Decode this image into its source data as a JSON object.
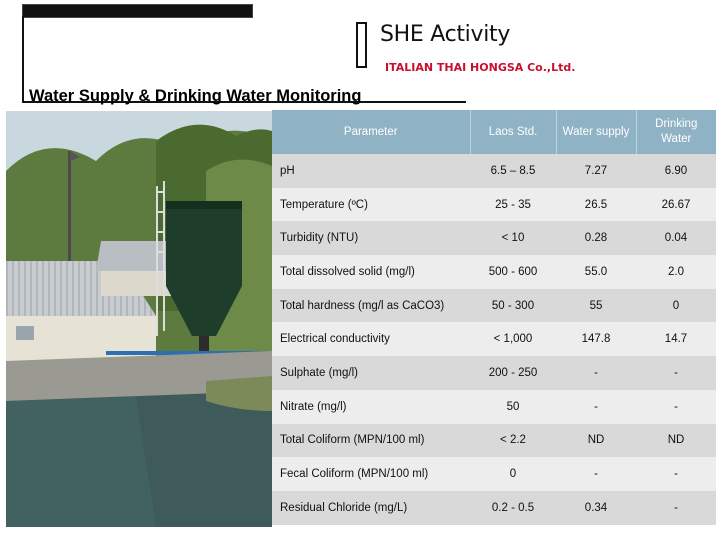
{
  "header": {
    "title": "SHE Activity",
    "company": "ITALIAN THAI HONGSA Co.,Ltd."
  },
  "page_title": "Water Supply & Drinking Water Monitoring",
  "colors": {
    "table_header": "#8fb3c5",
    "row_dark": "#d9d9d9",
    "row_light": "#ededed",
    "company_text": "#c8102e"
  },
  "table": {
    "headers": [
      "Parameter",
      "Laos Std.",
      "Water supply",
      "Drinking Water"
    ],
    "rows": [
      {
        "parameter": "pH",
        "laos_std": "6.5 – 8.5",
        "water_supply": "7.27",
        "drinking_water": "6.90"
      },
      {
        "parameter": "Temperature (ºC)",
        "laos_std": "25 - 35",
        "water_supply": "26.5",
        "drinking_water": "26.67"
      },
      {
        "parameter": "Turbidity (NTU)",
        "laos_std": "< 10",
        "water_supply": "0.28",
        "drinking_water": "0.04"
      },
      {
        "parameter": "Total dissolved solid (mg/l)",
        "laos_std": "500 - 600",
        "water_supply": "55.0",
        "drinking_water": "2.0"
      },
      {
        "parameter": "Total hardness (mg/l as CaCO3)",
        "laos_std": "50 - 300",
        "water_supply": "55",
        "drinking_water": "0"
      },
      {
        "parameter": "Electrical conductivity",
        "laos_std": "< 1,000",
        "water_supply": "147.8",
        "drinking_water": "14.7"
      },
      {
        "parameter": "Sulphate (mg/l)",
        "laos_std": "200 - 250",
        "water_supply": "-",
        "drinking_water": "-"
      },
      {
        "parameter": "Nitrate (mg/l)",
        "laos_std": "50",
        "water_supply": "-",
        "drinking_water": "-"
      },
      {
        "parameter": "Total Coliform (MPN/100 ml)",
        "laos_std": "< 2.2",
        "water_supply": "ND",
        "drinking_water": "ND"
      },
      {
        "parameter": "Fecal Coliform (MPN/100 ml)",
        "laos_std": "0",
        "water_supply": "-",
        "drinking_water": "-"
      },
      {
        "parameter": "Residual Chloride (mg/L)",
        "laos_std": "0.2 - 0.5",
        "water_supply": "0.34",
        "drinking_water": "-"
      }
    ]
  }
}
